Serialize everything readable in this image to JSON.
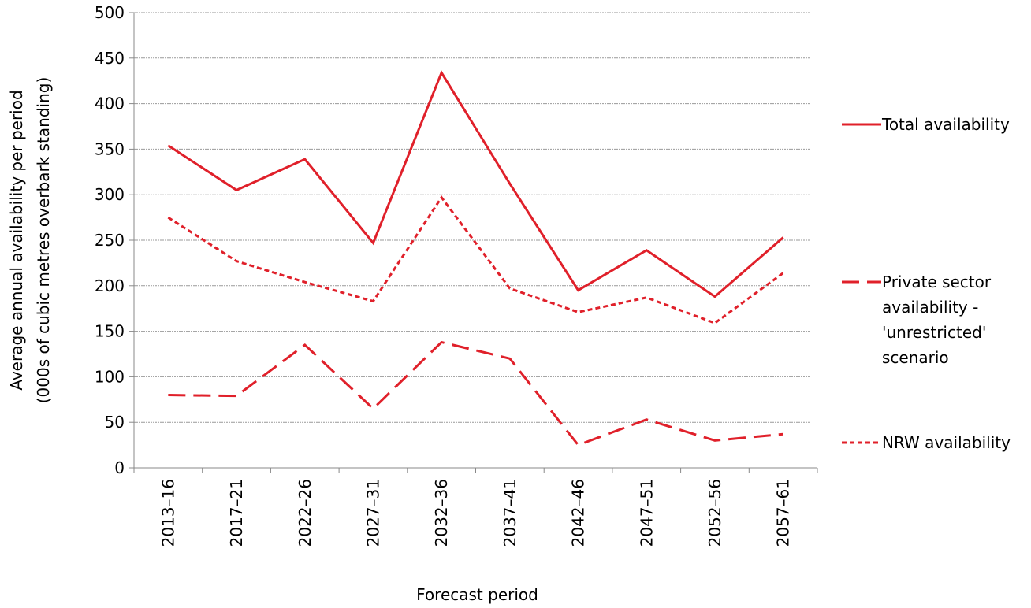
{
  "chart_data": {
    "type": "line",
    "xlabel": "Forecast period",
    "ylabel": [
      "Average annual availability per period",
      "(000s of cubic metres overbark standing)"
    ],
    "categories": [
      "2013–16",
      "2017–21",
      "2022–26",
      "2027–31",
      "2032–36",
      "2037–41",
      "2042–46",
      "2047–51",
      "2052–56",
      "2057–61"
    ],
    "series": [
      {
        "name": "Total availability",
        "color": "#e0202a",
        "style": "solid",
        "values": [
          354,
          305,
          339,
          247,
          434,
          312,
          195,
          239,
          188,
          253
        ]
      },
      {
        "name": "Private sector availability - 'unrestricted' scenario",
        "color": "#e0202a",
        "style": "dashed",
        "values": [
          80,
          79,
          135,
          65,
          138,
          120,
          25,
          53,
          30,
          37
        ]
      },
      {
        "name": "NRW availability",
        "color": "#e0202a",
        "style": "dotted",
        "values": [
          275,
          227,
          204,
          183,
          297,
          197,
          171,
          187,
          159,
          214
        ]
      }
    ],
    "ylim": [
      0,
      500
    ],
    "yticks": [
      0,
      50,
      100,
      150,
      200,
      250,
      300,
      350,
      400,
      450,
      500
    ],
    "grid": true,
    "legend": "right"
  }
}
